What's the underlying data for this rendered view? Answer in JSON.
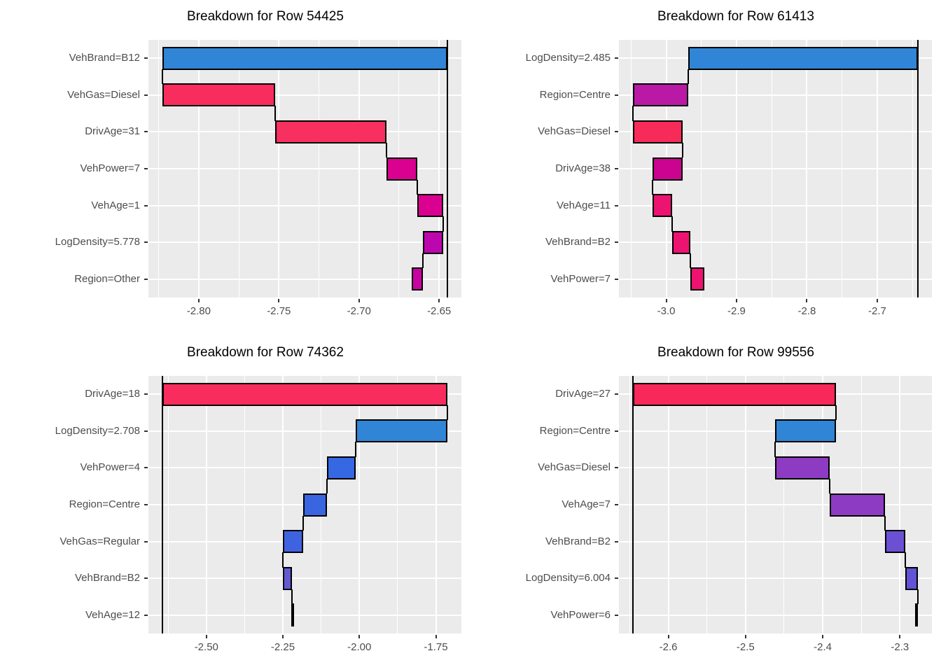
{
  "style": {
    "background": "#FFFFFF",
    "panel_background": "#EBEBEB",
    "grid_color": "#FFFFFF",
    "bar_stroke": "#000000",
    "intercept_line_color": "#000000",
    "axis_text_color": "#4D4D4D",
    "tick_mark_color": "#333333",
    "title_color": "#000000"
  },
  "chart_data": [
    {
      "type": "bar",
      "variant": "waterfall-breakdown",
      "title": "Breakdown for Row 54425",
      "legend": "none",
      "grid": "on",
      "intercept": -2.645,
      "final_prediction": -2.667,
      "xlim": [
        -2.8314,
        -2.6361
      ],
      "x_ticks": [
        {
          "value": -2.8,
          "label": "-2.80"
        },
        {
          "value": -2.75,
          "label": "-2.75"
        },
        {
          "value": -2.7,
          "label": "-2.70"
        },
        {
          "value": -2.65,
          "label": "-2.65"
        }
      ],
      "x_minor": [
        -2.825,
        -2.775,
        -2.725,
        -2.675
      ],
      "rows": [
        {
          "label": "VehBrand=B12",
          "from": -2.645,
          "to": -2.8225,
          "contribution": -0.178,
          "color": "#3185D6"
        },
        {
          "label": "VehGas=Diesel",
          "from": -2.8225,
          "to": -2.7525,
          "contribution": 0.07,
          "color": "#F82D5E"
        },
        {
          "label": "DrivAge=31",
          "from": -2.7525,
          "to": -2.683,
          "contribution": 0.07,
          "color": "#F8305F"
        },
        {
          "label": "VehPower=7",
          "from": -2.683,
          "to": -2.6635,
          "contribution": 0.019,
          "color": "#DB0190"
        },
        {
          "label": "VehAge=1",
          "from": -2.6635,
          "to": -2.6475,
          "contribution": 0.016,
          "color": "#DB0190"
        },
        {
          "label": "LogDensity=5.778",
          "from": -2.6475,
          "to": -2.66,
          "contribution": -0.013,
          "color": "#BC07AE"
        },
        {
          "label": "Region=Other",
          "from": -2.66,
          "to": -2.667,
          "contribution": -0.007,
          "color": "#C704A2"
        }
      ]
    },
    {
      "type": "bar",
      "variant": "waterfall-breakdown",
      "title": "Breakdown for Row 61413",
      "legend": "none",
      "grid": "on",
      "intercept": -2.6425,
      "final_prediction": -2.9455,
      "xlim": [
        -3.0672,
        -2.6223
      ],
      "x_ticks": [
        {
          "value": -3.0,
          "label": "-3.0"
        },
        {
          "value": -2.9,
          "label": "-2.9"
        },
        {
          "value": -2.8,
          "label": "-2.8"
        },
        {
          "value": -2.7,
          "label": "-2.7"
        }
      ],
      "x_minor": [
        -3.05,
        -2.95,
        -2.85,
        -2.75,
        -2.65
      ],
      "rows": [
        {
          "label": "LogDensity=2.485",
          "from": -2.6425,
          "to": -2.969,
          "contribution": -0.327,
          "color": "#3185D6"
        },
        {
          "label": "Region=Centre",
          "from": -2.969,
          "to": -3.047,
          "contribution": -0.078,
          "color": "#B919A5"
        },
        {
          "label": "VehGas=Diesel",
          "from": -3.047,
          "to": -2.977,
          "contribution": 0.07,
          "color": "#F72B59"
        },
        {
          "label": "DrivAge=38",
          "from": -2.977,
          "to": -3.0195,
          "contribution": -0.043,
          "color": "#CC0390"
        },
        {
          "label": "VehAge=11",
          "from": -3.0195,
          "to": -2.9915,
          "contribution": 0.028,
          "color": "#ED1371"
        },
        {
          "label": "VehBrand=B2",
          "from": -2.9915,
          "to": -2.9655,
          "contribution": 0.026,
          "color": "#ED1371"
        },
        {
          "label": "VehPower=7",
          "from": -2.9655,
          "to": -2.9455,
          "contribution": 0.02,
          "color": "#EE1371"
        }
      ]
    },
    {
      "type": "bar",
      "variant": "waterfall-breakdown",
      "title": "Breakdown for Row 74362",
      "legend": "none",
      "grid": "on",
      "intercept": -2.643,
      "final_prediction": -2.2235,
      "xlim": [
        -2.6895,
        -1.6665
      ],
      "x_ticks": [
        {
          "value": -2.5,
          "label": "-2.50"
        },
        {
          "value": -2.25,
          "label": "-2.25"
        },
        {
          "value": -2.0,
          "label": "-2.00"
        },
        {
          "value": -1.75,
          "label": "-1.75"
        }
      ],
      "x_minor": [
        -2.625,
        -2.375,
        -2.125,
        -1.875
      ],
      "rows": [
        {
          "label": "DrivAge=18",
          "from": -2.643,
          "to": -1.713,
          "contribution": 0.93,
          "color": "#F82D5E"
        },
        {
          "label": "LogDensity=2.708",
          "from": -1.713,
          "to": -2.012,
          "contribution": -0.299,
          "color": "#3185D6"
        },
        {
          "label": "VehPower=4",
          "from": -2.012,
          "to": -2.107,
          "contribution": -0.095,
          "color": "#3568E2"
        },
        {
          "label": "Region=Centre",
          "from": -2.107,
          "to": -2.184,
          "contribution": -0.077,
          "color": "#3A65E0"
        },
        {
          "label": "VehGas=Regular",
          "from": -2.184,
          "to": -2.249,
          "contribution": -0.065,
          "color": "#3F63E0"
        },
        {
          "label": "VehBrand=B2",
          "from": -2.249,
          "to": -2.221,
          "contribution": 0.028,
          "color": "#635AD3"
        },
        {
          "label": "VehAge=12",
          "from": -2.221,
          "to": -2.2235,
          "contribution": -0.003,
          "color": "#3C3F8F"
        }
      ]
    },
    {
      "type": "bar",
      "variant": "waterfall-breakdown",
      "title": "Breakdown for Row 99556",
      "legend": "none",
      "grid": "on",
      "intercept": -2.6455,
      "final_prediction": -2.28,
      "xlim": [
        -2.664,
        -2.2586
      ],
      "x_ticks": [
        {
          "value": -2.6,
          "label": "-2.6"
        },
        {
          "value": -2.5,
          "label": "-2.5"
        },
        {
          "value": -2.4,
          "label": "-2.4"
        },
        {
          "value": -2.3,
          "label": "-2.3"
        }
      ],
      "x_minor": [
        -2.65,
        -2.55,
        -2.45,
        -2.35
      ],
      "rows": [
        {
          "label": "DrivAge=27",
          "from": -2.6455,
          "to": -2.383,
          "contribution": 0.263,
          "color": "#F8285A"
        },
        {
          "label": "Region=Centre",
          "from": -2.383,
          "to": -2.462,
          "contribution": -0.079,
          "color": "#3185D6"
        },
        {
          "label": "VehGas=Diesel",
          "from": -2.462,
          "to": -2.391,
          "contribution": 0.071,
          "color": "#8E3BC4"
        },
        {
          "label": "VehAge=7",
          "from": -2.391,
          "to": -2.319,
          "contribution": 0.072,
          "color": "#8E3BC4"
        },
        {
          "label": "VehBrand=B2",
          "from": -2.319,
          "to": -2.293,
          "contribution": 0.026,
          "color": "#6C50D3"
        },
        {
          "label": "LogDensity=6.004",
          "from": -2.293,
          "to": -2.277,
          "contribution": 0.016,
          "color": "#6252D6"
        },
        {
          "label": "VehPower=6",
          "from": -2.277,
          "to": -2.28,
          "contribution": -0.003,
          "color": "#5B4FD5"
        }
      ]
    }
  ]
}
